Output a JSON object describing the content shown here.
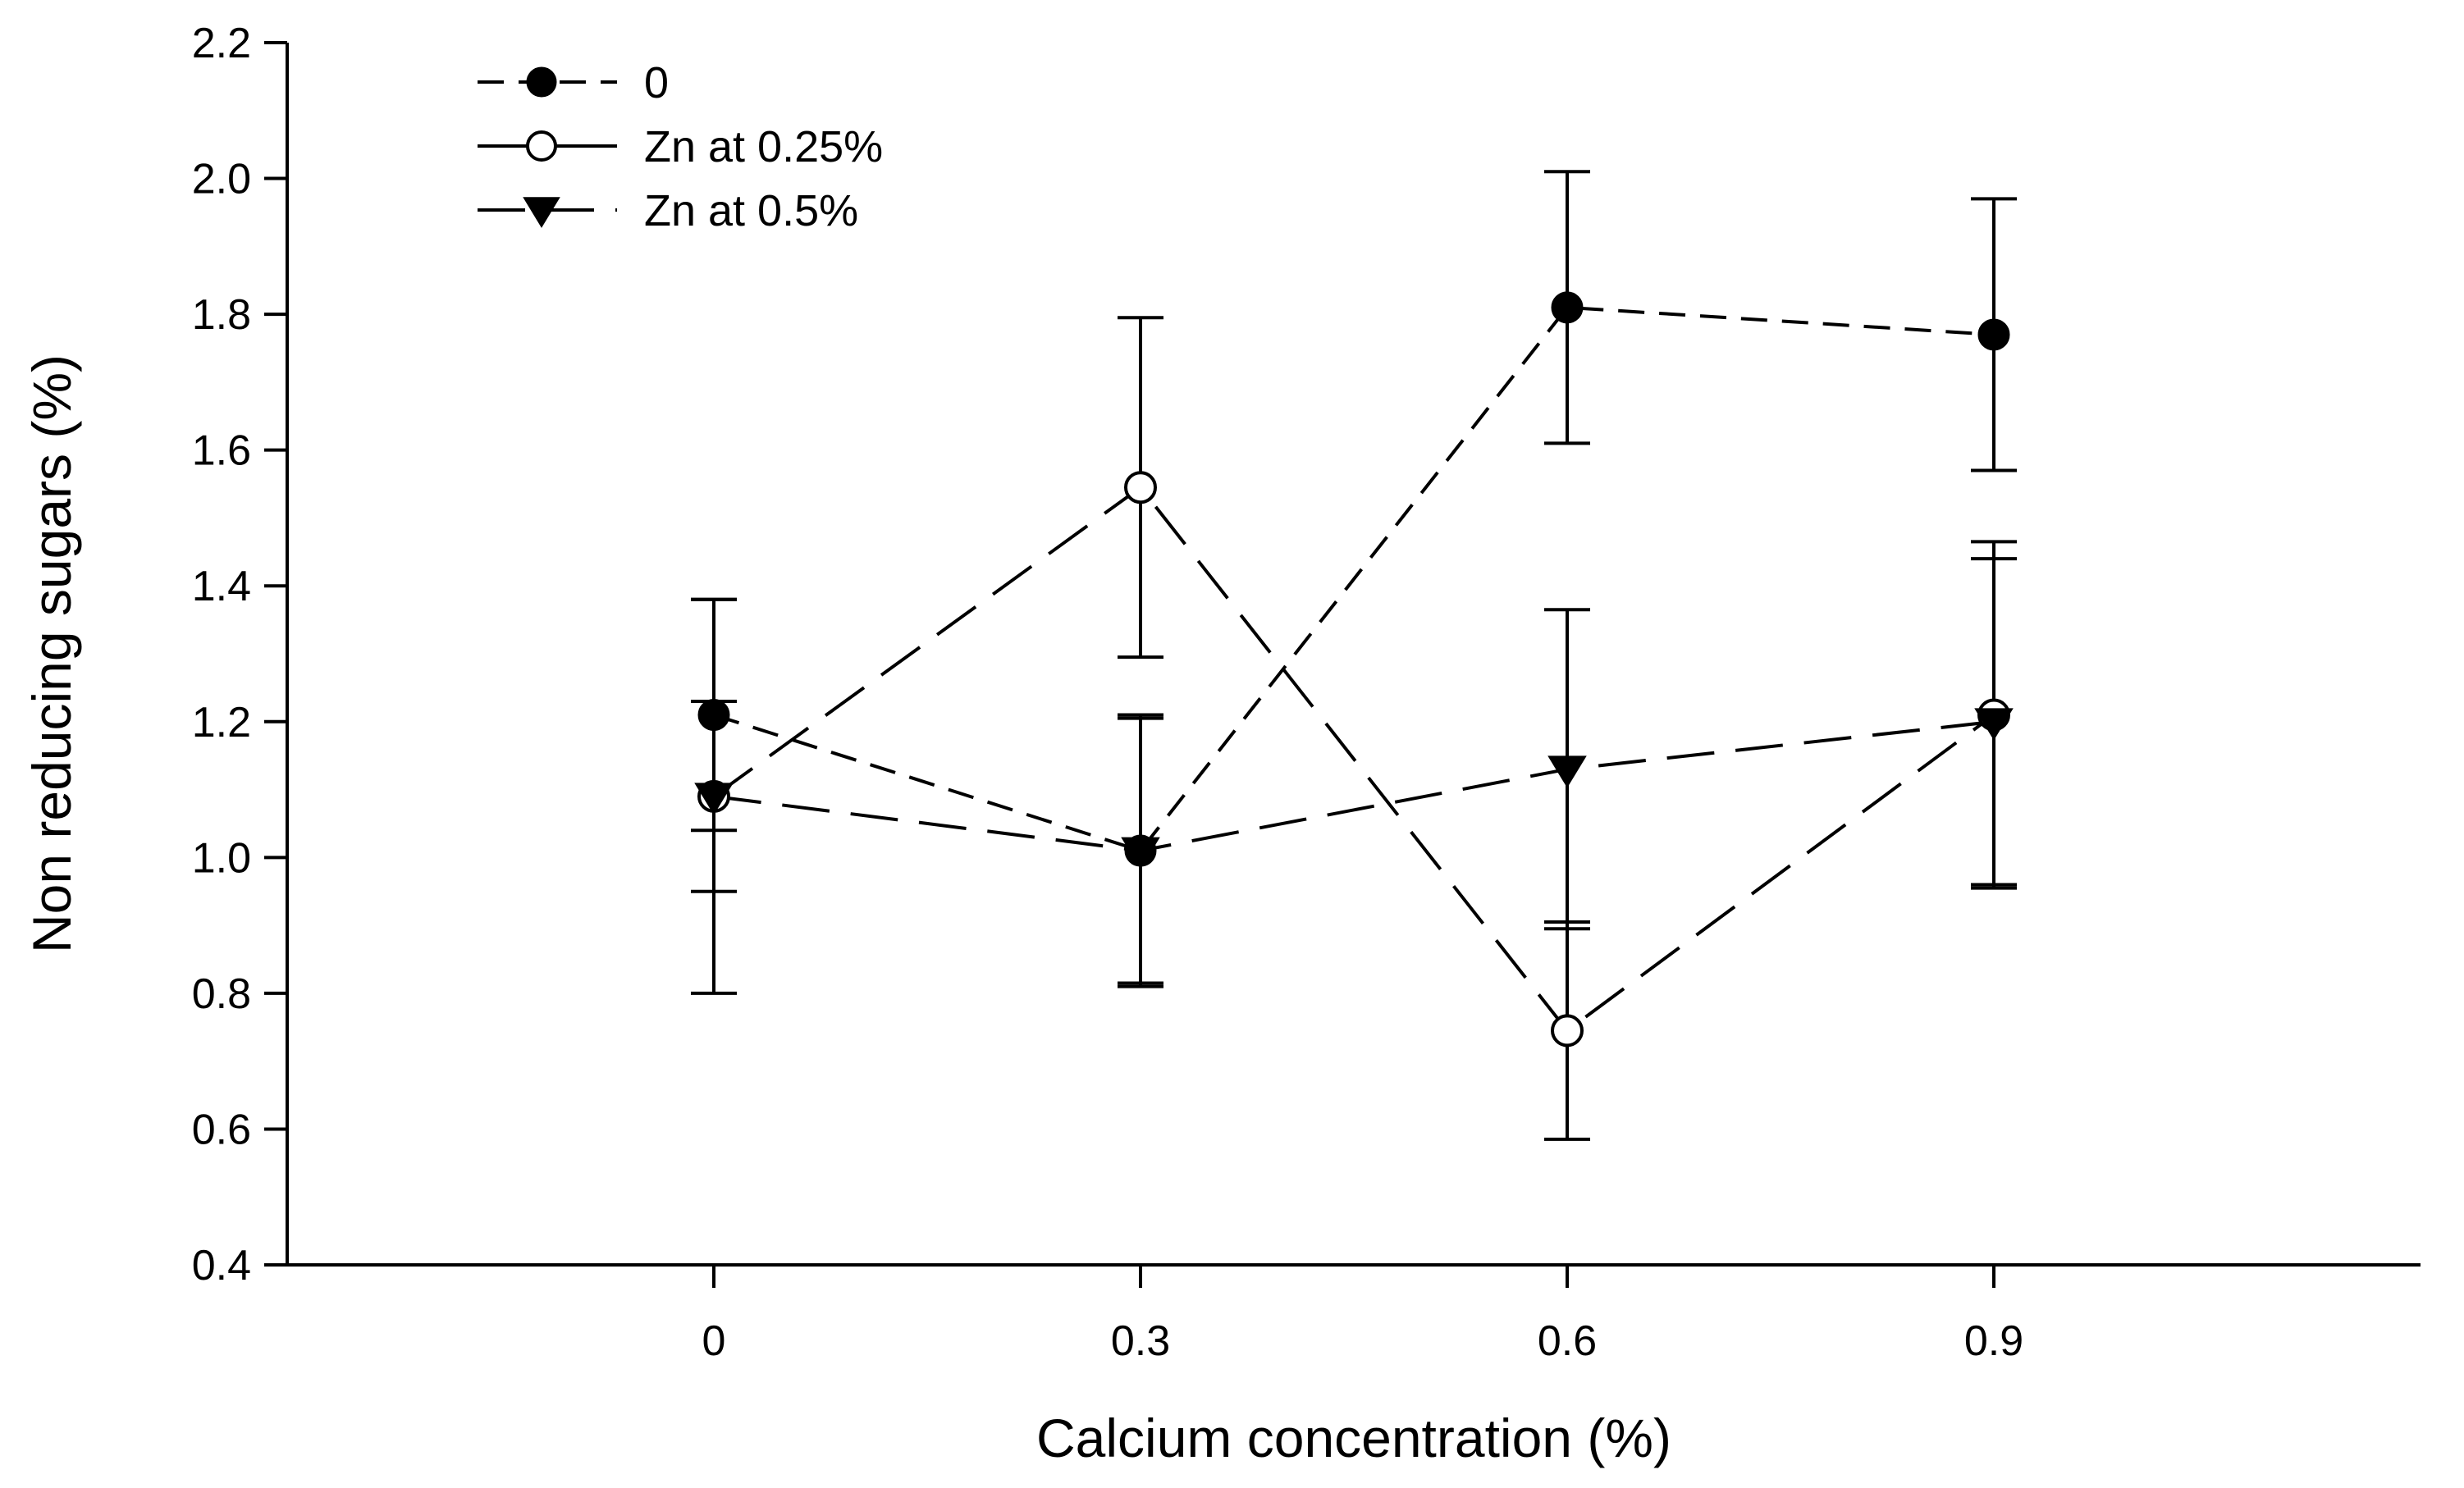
{
  "chart_data": {
    "type": "line",
    "title": "",
    "xlabel": "Calcium concentration (%)",
    "ylabel": "Non reducing sugars (%)",
    "categories": [
      "0",
      "0.3",
      "0.6",
      "0.9"
    ],
    "x": [
      0,
      0.3,
      0.6,
      0.9
    ],
    "xlim": [
      -0.3,
      1.2
    ],
    "ylim": [
      0.4,
      2.2
    ],
    "yticks": [
      0.4,
      0.6,
      0.8,
      1.0,
      1.2,
      1.4,
      1.6,
      1.8,
      2.0,
      2.2
    ],
    "ytick_labels": [
      "0.4",
      "0.6",
      "0.8",
      "1.0",
      "1.2",
      "1.4",
      "1.6",
      "1.8",
      "2.0",
      "2.2"
    ],
    "grid": false,
    "legend_position": "top-left",
    "error_bars": true,
    "series": [
      {
        "name": "0",
        "marker": "filled-circle",
        "line": "short-dash",
        "values": [
          1.21,
          1.01,
          1.81,
          1.77
        ],
        "errors": [
          0.17,
          0.2,
          0.2,
          0.2
        ]
      },
      {
        "name": "Zn at 0.25%",
        "marker": "open-circle",
        "line": "long-dash",
        "values": [
          1.09,
          1.545,
          0.745,
          1.21
        ],
        "errors": [
          0.29,
          0.25,
          0.16,
          0.255
        ]
      },
      {
        "name": "Zn at 0.5%",
        "marker": "filled-triangle-down",
        "line": "long-dash",
        "values": [
          1.09,
          1.01,
          1.13,
          1.2
        ],
        "errors": [
          0.14,
          0.195,
          0.235,
          0.24
        ]
      }
    ]
  }
}
